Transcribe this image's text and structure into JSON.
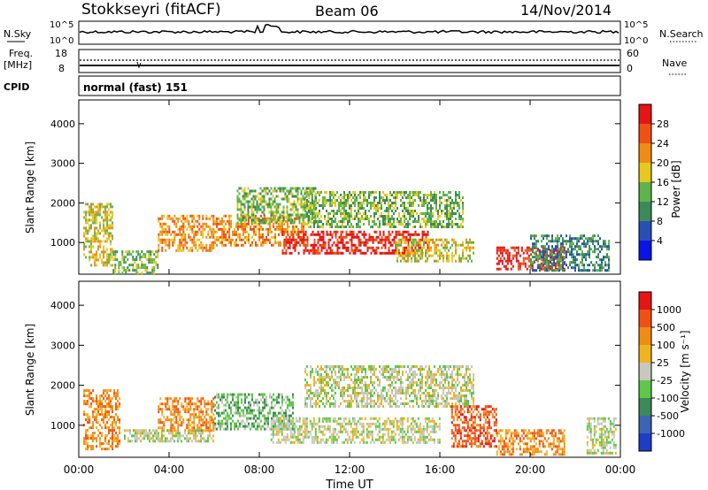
{
  "header": {
    "station": "Stokkseyri (fitACF)",
    "beam": "Beam 06",
    "date": "14/Nov/2014"
  },
  "top_panels": {
    "nsky_label": "N.Sky",
    "nsky_ticks": [
      "10^5",
      "10^0"
    ],
    "nsearch_label": "N.Search",
    "nsearch_ticks": [
      "10^5",
      "10^0"
    ],
    "freq_label": "Freq.",
    "freq_unit": "[MHz]",
    "freq_ticks": [
      "18",
      "8"
    ],
    "nave_label": "Nave",
    "nave_ticks": [
      "60",
      "0"
    ],
    "cpid_label": "CPID",
    "cpid_value": "normal (fast) 151"
  },
  "colors": {
    "power": [
      "#0a14e6",
      "#2850b4",
      "#3c8a5a",
      "#5fb44a",
      "#e6c81e",
      "#f08c14",
      "#f05014",
      "#e61414"
    ],
    "velocity": [
      "#1e3cc8",
      "#3c64b4",
      "#3c8a5a",
      "#5fc84a",
      "#c8c8c0",
      "#f0b41e",
      "#f08c14",
      "#f05014",
      "#e61414"
    ]
  },
  "chart_data": [
    {
      "type": "heatmap",
      "name": "power",
      "ylabel": "Slant Range [km]",
      "xlabel": "",
      "x_ticks": [
        "00:00",
        "04:00",
        "08:00",
        "12:00",
        "16:00",
        "20:00",
        "00:00"
      ],
      "y_ticks": [
        "1000",
        "2000",
        "3000",
        "4000"
      ],
      "ylim": [
        200,
        4600
      ],
      "colorbar_label": "Power [dB]",
      "colorbar_ticks": [
        "4",
        "8",
        "12",
        "16",
        "20",
        "24",
        "28"
      ],
      "blobs": [
        {
          "t0": 0.2,
          "t1": 1.5,
          "r0": 400,
          "r1": 2000,
          "level": 4
        },
        {
          "t0": 1.5,
          "t1": 3.5,
          "r0": 250,
          "r1": 800,
          "level": 3
        },
        {
          "t0": 3.5,
          "t1": 6.0,
          "r0": 800,
          "r1": 1700,
          "level": 5
        },
        {
          "t0": 6.0,
          "t1": 10.0,
          "r0": 900,
          "r1": 1700,
          "level": 5
        },
        {
          "t0": 7.0,
          "t1": 10.5,
          "r0": 1500,
          "r1": 2400,
          "level": 3
        },
        {
          "t0": 9.0,
          "t1": 15.5,
          "r0": 700,
          "r1": 1300,
          "level": 7
        },
        {
          "t0": 10.0,
          "t1": 17.0,
          "r0": 1400,
          "r1": 2300,
          "level": 3
        },
        {
          "t0": 14.0,
          "t1": 17.5,
          "r0": 500,
          "r1": 1100,
          "level": 4
        },
        {
          "t0": 18.5,
          "t1": 21.5,
          "r0": 300,
          "r1": 900,
          "level": 7
        },
        {
          "t0": 20.0,
          "t1": 23.5,
          "r0": 300,
          "r1": 1200,
          "level": 2
        }
      ]
    },
    {
      "type": "heatmap",
      "name": "velocity",
      "ylabel": "Slant Range [km]",
      "xlabel": "Time UT",
      "x_ticks": [
        "00:00",
        "04:00",
        "08:00",
        "12:00",
        "16:00",
        "20:00",
        "00:00"
      ],
      "y_ticks": [
        "1000",
        "2000",
        "3000",
        "4000"
      ],
      "ylim": [
        200,
        4600
      ],
      "colorbar_label": "Velocity [m s⁻¹]",
      "colorbar_ticks": [
        "1000",
        "500",
        "100",
        "25",
        "-25",
        "-100",
        "-500",
        "-1000"
      ],
      "blobs": [
        {
          "t0": 0.2,
          "t1": 1.8,
          "r0": 400,
          "r1": 1900,
          "level": 6
        },
        {
          "t0": 2.0,
          "t1": 6.0,
          "r0": 600,
          "r1": 900,
          "level": 4
        },
        {
          "t0": 3.5,
          "t1": 6.0,
          "r0": 900,
          "r1": 1700,
          "level": 6
        },
        {
          "t0": 6.0,
          "t1": 9.5,
          "r0": 900,
          "r1": 1800,
          "level": 3
        },
        {
          "t0": 8.5,
          "t1": 16.0,
          "r0": 600,
          "r1": 1200,
          "level": 4
        },
        {
          "t0": 10.0,
          "t1": 17.5,
          "r0": 1500,
          "r1": 2500,
          "level": 4
        },
        {
          "t0": 16.5,
          "t1": 18.5,
          "r0": 500,
          "r1": 1500,
          "level": 7
        },
        {
          "t0": 18.5,
          "t1": 21.5,
          "r0": 300,
          "r1": 900,
          "level": 6
        },
        {
          "t0": 22.5,
          "t1": 23.8,
          "r0": 300,
          "r1": 1200,
          "level": 4
        }
      ]
    }
  ]
}
